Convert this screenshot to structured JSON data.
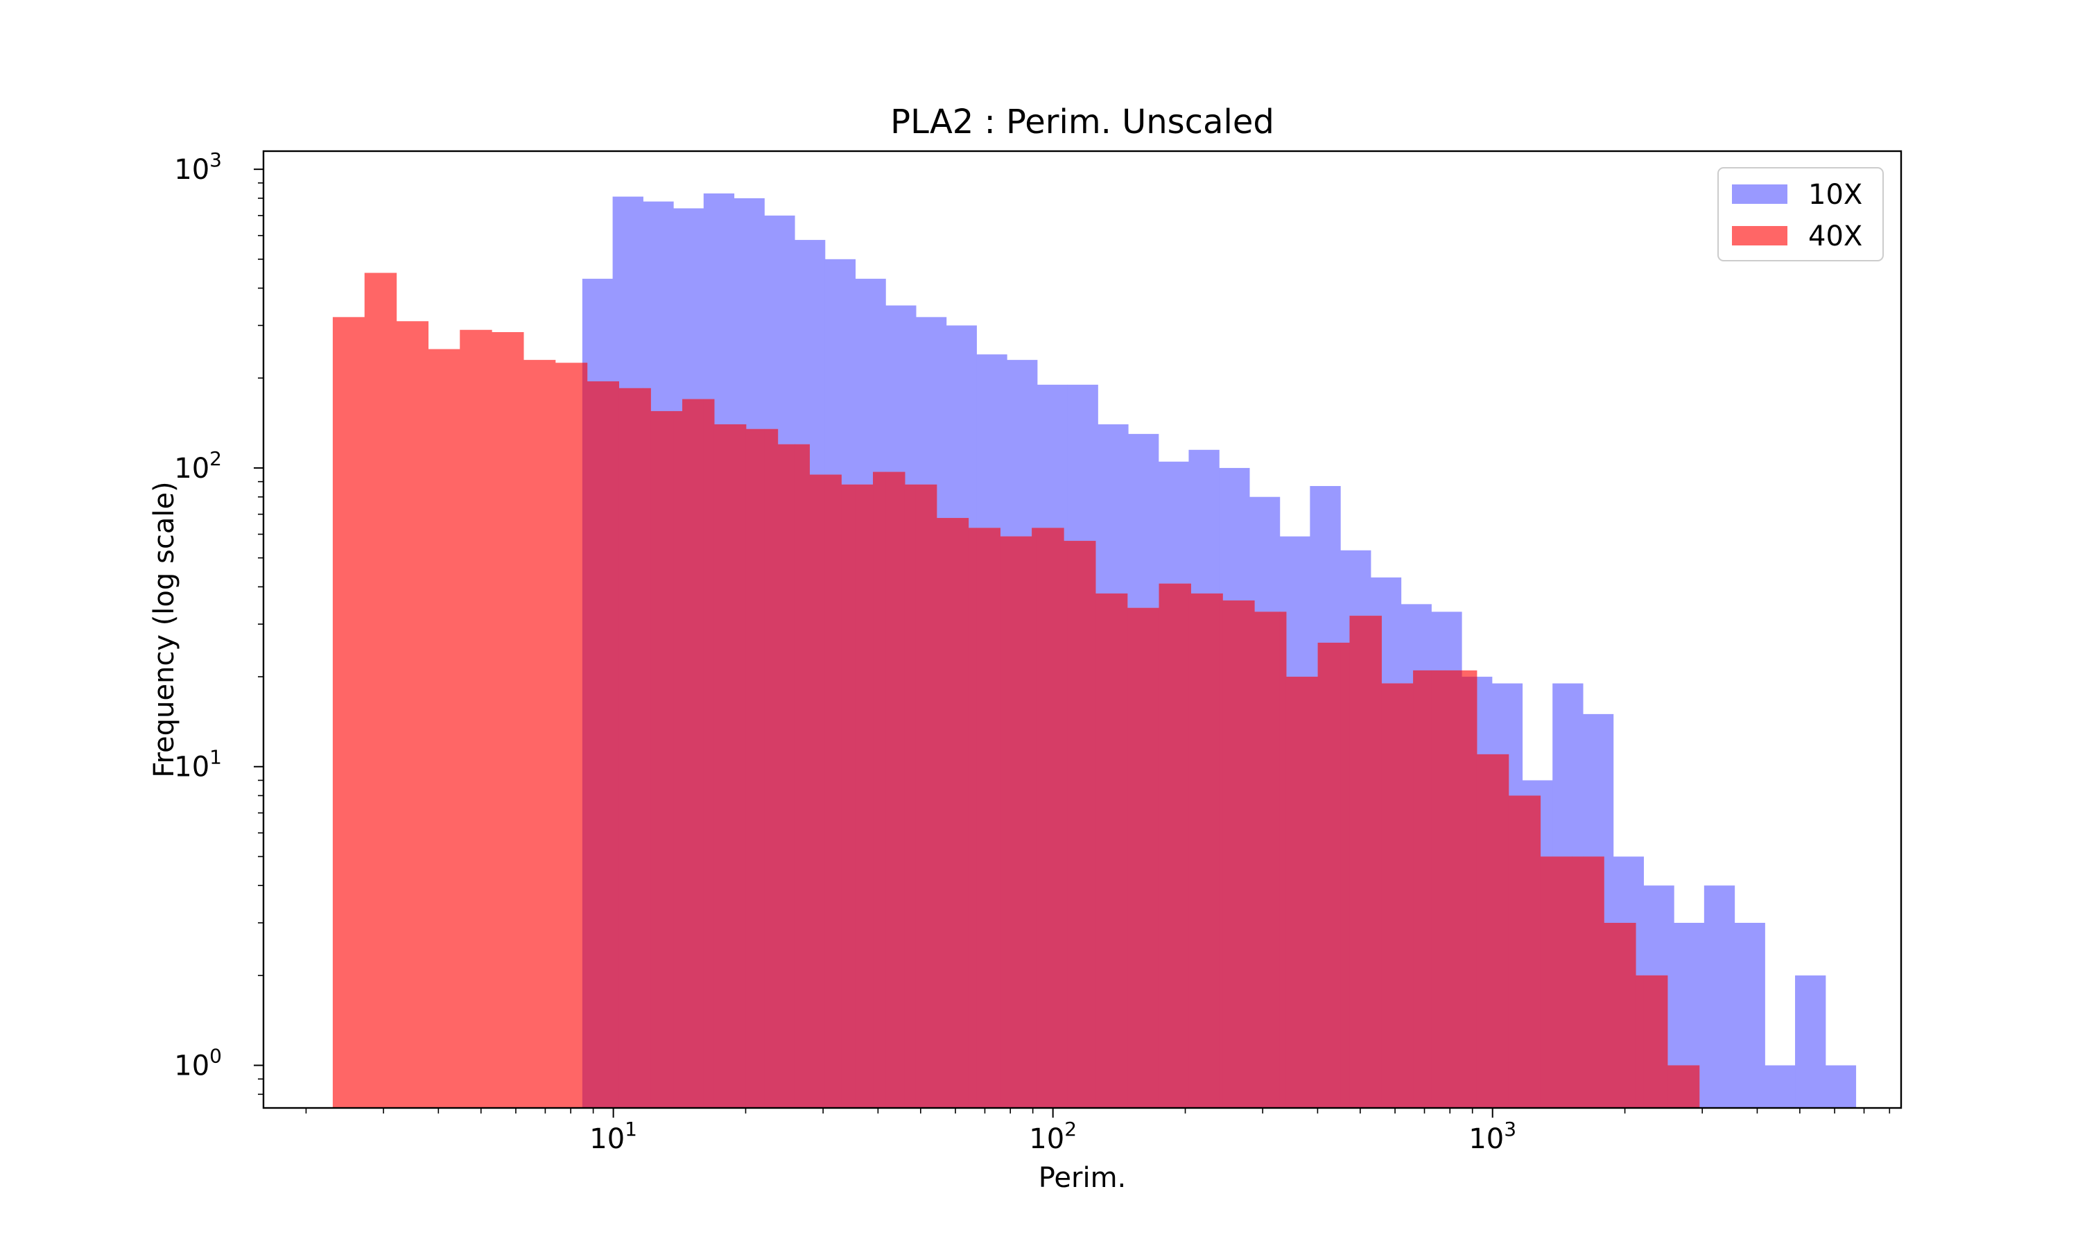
{
  "chart_data": {
    "type": "histogram",
    "title": "PLA2 : Perim. Unscaled",
    "xlabel": "Perim.",
    "ylabel": "Frequency (log scale)",
    "xscale": "log",
    "yscale": "log",
    "xlim": [
      1.6,
      8500
    ],
    "ylim": [
      0.72,
      1150
    ],
    "grid": false,
    "legend_position": "top-right",
    "x_ticks": [
      {
        "base": "10",
        "exp": "1",
        "value": 10
      },
      {
        "base": "10",
        "exp": "2",
        "value": 100
      },
      {
        "base": "10",
        "exp": "3",
        "value": 1000
      }
    ],
    "y_ticks": [
      {
        "base": "10",
        "exp": "0",
        "value": 1
      },
      {
        "base": "10",
        "exp": "1",
        "value": 10
      },
      {
        "base": "10",
        "exp": "2",
        "value": 100
      },
      {
        "base": "10",
        "exp": "3",
        "value": 1000
      }
    ],
    "series": [
      {
        "name": "10X",
        "color": "#9999ff",
        "bin_start": 8.5,
        "bin_end": 6700,
        "counts": [
          430,
          810,
          780,
          740,
          830,
          800,
          700,
          580,
          500,
          430,
          350,
          320,
          300,
          240,
          230,
          190,
          190,
          140,
          130,
          105,
          115,
          100,
          80,
          59,
          87,
          53,
          43,
          35,
          33,
          20,
          19,
          9,
          19,
          15,
          5,
          4,
          3,
          4,
          3,
          1,
          2,
          1
        ]
      },
      {
        "name": "40X",
        "color": "#ff6666",
        "bin_start": 2.3,
        "bin_end": 2950,
        "counts": [
          320,
          450,
          310,
          250,
          290,
          285,
          230,
          225,
          195,
          185,
          155,
          170,
          140,
          135,
          120,
          95,
          88,
          97,
          88,
          68,
          63,
          59,
          63,
          57,
          38,
          34,
          41,
          38,
          36,
          33,
          20,
          26,
          32,
          19,
          21,
          21,
          11,
          8,
          5,
          5,
          3,
          2,
          1
        ]
      }
    ],
    "overlap_color": "#d63d66"
  }
}
